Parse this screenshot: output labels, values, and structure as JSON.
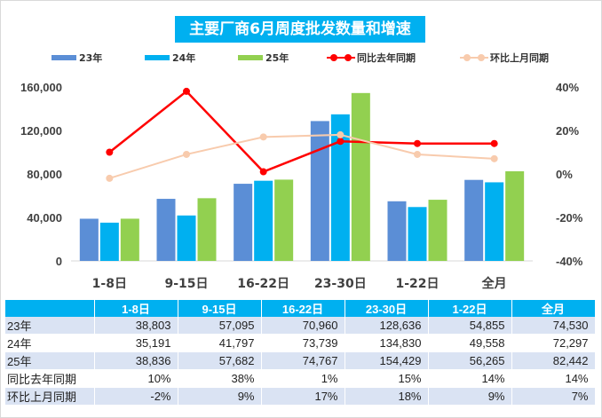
{
  "title": "主要厂商6月周度批发数量和增速",
  "legend": [
    {
      "label": "23年",
      "kind": "bar",
      "color": "#5b8ed6"
    },
    {
      "label": "24年",
      "kind": "bar",
      "color": "#00b0f0"
    },
    {
      "label": "25年",
      "kind": "bar",
      "color": "#92d050"
    },
    {
      "label": "同比去年同期",
      "kind": "line",
      "color": "#ff0000"
    },
    {
      "label": "环比上月同期",
      "kind": "line",
      "color": "#f8cbad"
    }
  ],
  "chart_data": {
    "type": "bar",
    "categories": [
      "1-8日",
      "9-15日",
      "16-22日",
      "23-30日",
      "1-22日",
      "全月"
    ],
    "series": [
      {
        "name": "23年",
        "type": "bar",
        "axis": "left",
        "color": "#5b8ed6",
        "values": [
          38803,
          57095,
          70960,
          128636,
          54855,
          74530
        ]
      },
      {
        "name": "24年",
        "type": "bar",
        "axis": "left",
        "color": "#00b0f0",
        "values": [
          35191,
          41797,
          73739,
          134830,
          49558,
          72297
        ]
      },
      {
        "name": "25年",
        "type": "bar",
        "axis": "left",
        "color": "#92d050",
        "values": [
          38836,
          57682,
          74767,
          154429,
          56265,
          82442
        ]
      },
      {
        "name": "同比去年同期",
        "type": "line",
        "axis": "right",
        "color": "#ff0000",
        "values": [
          10,
          38,
          1,
          15,
          14,
          14
        ]
      },
      {
        "name": "环比上月同期",
        "type": "line",
        "axis": "right",
        "color": "#f8cbad",
        "values": [
          -2,
          9,
          17,
          18,
          9,
          7
        ]
      }
    ],
    "y_left": {
      "min": 0,
      "max": 160000,
      "ticks": [
        "0",
        "40,000",
        "80,000",
        "120,000",
        "160,000"
      ],
      "tick_values": [
        0,
        40000,
        80000,
        120000,
        160000
      ]
    },
    "y_right": {
      "min": -40,
      "max": 40,
      "ticks": [
        "-40%",
        "-20%",
        "0%",
        "20%",
        "40%"
      ],
      "tick_values": [
        -40,
        -20,
        0,
        20,
        40
      ]
    },
    "grid": false,
    "legend_position": "top"
  },
  "table": {
    "header": [
      "",
      "1-8日",
      "9-15日",
      "16-22日",
      "23-30日",
      "1-22日",
      "全月"
    ],
    "rows": [
      [
        "23年",
        "38,803",
        "57,095",
        "70,960",
        "128,636",
        "54,855",
        "74,530"
      ],
      [
        "24年",
        "35,191",
        "41,797",
        "73,739",
        "134,830",
        "49,558",
        "72,297"
      ],
      [
        "25年",
        "38,836",
        "57,682",
        "74,767",
        "154,429",
        "56,265",
        "82,442"
      ],
      [
        "同比去年同期",
        "10%",
        "38%",
        "1%",
        "15%",
        "14%",
        "14%"
      ],
      [
        "环比上月同期",
        "-2%",
        "9%",
        "17%",
        "18%",
        "9%",
        "7%"
      ]
    ]
  }
}
